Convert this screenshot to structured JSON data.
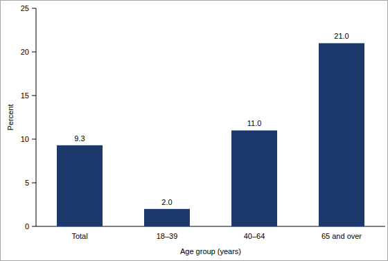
{
  "chart_data": {
    "type": "bar",
    "x_label": "Age group (years)",
    "y_label": "Percent",
    "categories": [
      "Total",
      "18–39",
      "40–64",
      "65 and over"
    ],
    "values": [
      9.3,
      2.0,
      11.0,
      21.0
    ],
    "value_labels": [
      "9.3",
      "2.0",
      "11.0",
      "21.0"
    ],
    "data_labels": true,
    "color": "#1b3a6b",
    "ylim": [
      0,
      25
    ],
    "yticks": [
      0,
      5,
      10,
      15,
      20,
      25
    ],
    "grid": false
  }
}
